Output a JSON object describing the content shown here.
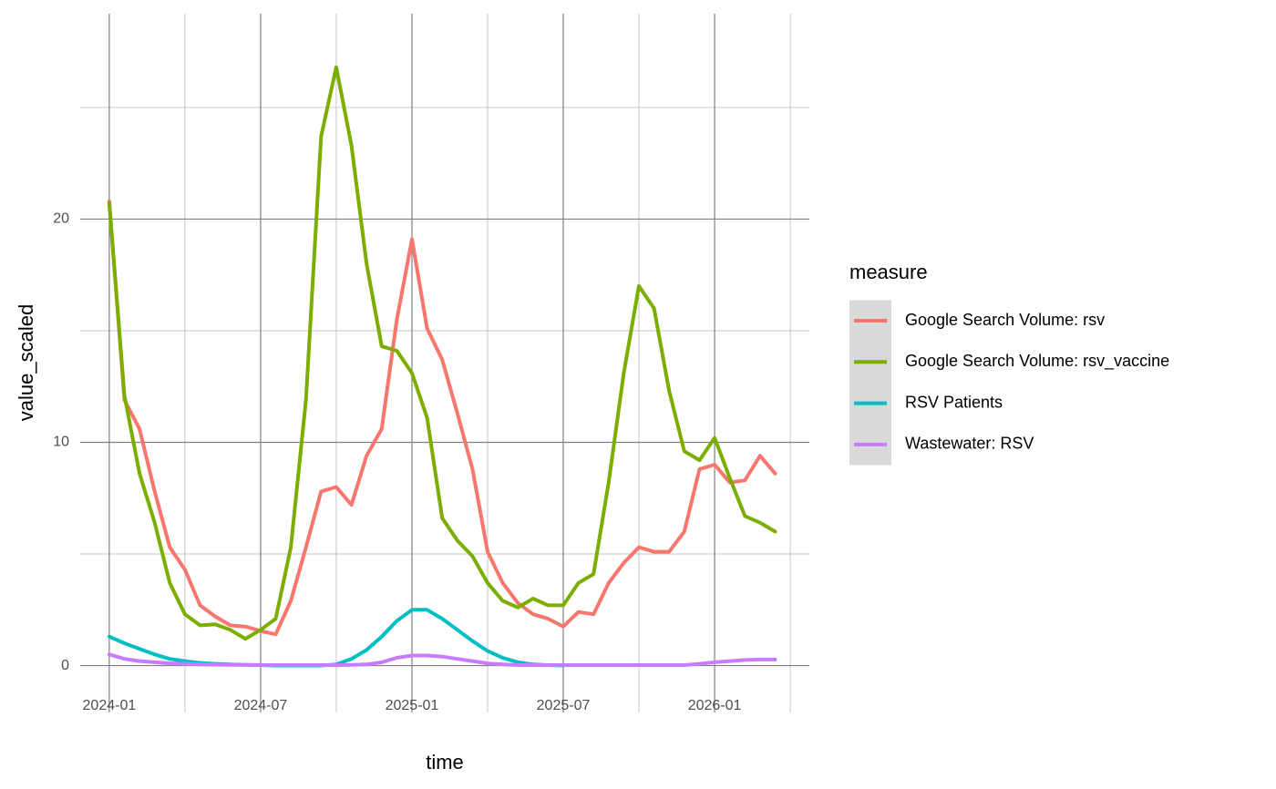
{
  "chart_data": {
    "type": "line",
    "x_label": "time",
    "y_label": "value_scaled",
    "legend_title": "measure",
    "x": [
      2024.0,
      2024.05,
      2024.1,
      2024.15,
      2024.2,
      2024.25,
      2024.3,
      2024.35,
      2024.4,
      2024.45,
      2024.5,
      2024.55,
      2024.6,
      2024.65,
      2024.7,
      2024.75,
      2024.8,
      2024.85,
      2024.9,
      2024.95,
      2025.0,
      2025.05,
      2025.1,
      2025.15,
      2025.2,
      2025.25,
      2025.3,
      2025.35,
      2025.4,
      2025.45,
      2025.5,
      2025.55,
      2025.6,
      2025.65,
      2025.7,
      2025.75,
      2025.8,
      2025.85,
      2025.9,
      2025.95,
      2026.0,
      2026.05,
      2026.1,
      2026.15,
      2026.2
    ],
    "series": [
      {
        "name": "Google Search Volume: rsv",
        "color": "#F8766D",
        "values": [
          20.8,
          11.9,
          10.6,
          7.8,
          5.3,
          4.3,
          2.7,
          2.2,
          1.8,
          1.75,
          1.55,
          1.4,
          2.9,
          5.3,
          7.8,
          8.0,
          7.2,
          9.4,
          10.6,
          15.5,
          19.1,
          15.1,
          13.7,
          11.3,
          8.8,
          5.1,
          3.7,
          2.8,
          2.3,
          2.1,
          1.75,
          2.4,
          2.3,
          3.7,
          4.6,
          5.3,
          5.1,
          5.1,
          6.0,
          8.8,
          9.0,
          8.2,
          8.3,
          9.4,
          8.6
        ]
      },
      {
        "name": "Google Search Volume: rsv_vaccine",
        "color": "#7CAE00",
        "values": [
          20.7,
          12.1,
          8.6,
          6.4,
          3.7,
          2.3,
          1.8,
          1.85,
          1.6,
          1.2,
          1.6,
          2.1,
          5.3,
          11.9,
          23.7,
          26.8,
          23.3,
          18.0,
          14.3,
          14.1,
          13.1,
          11.1,
          6.6,
          5.6,
          4.9,
          3.7,
          2.9,
          2.6,
          3.0,
          2.7,
          2.7,
          3.7,
          4.1,
          8.2,
          13.1,
          17.0,
          16.0,
          12.3,
          9.6,
          9.2,
          10.2,
          8.4,
          6.7,
          6.4,
          6.0
        ]
      },
      {
        "name": "RSV Patients",
        "color": "#00BFC4",
        "values": [
          1.3,
          1.0,
          0.75,
          0.5,
          0.3,
          0.2,
          0.12,
          0.08,
          0.05,
          0.03,
          0.02,
          0.0,
          0.0,
          0.0,
          0.0,
          0.05,
          0.3,
          0.7,
          1.3,
          2.0,
          2.5,
          2.5,
          2.1,
          1.6,
          1.1,
          0.65,
          0.35,
          0.15,
          0.05,
          0.02,
          0.0,
          null,
          null,
          null,
          null,
          null,
          null,
          null,
          null,
          null,
          null,
          null,
          null,
          null,
          null
        ]
      },
      {
        "name": "Wastewater: RSV",
        "color": "#C77CFF",
        "values": [
          0.5,
          0.3,
          0.2,
          0.15,
          0.1,
          0.08,
          0.05,
          0.04,
          0.03,
          0.03,
          0.02,
          0.02,
          0.02,
          0.02,
          0.02,
          0.02,
          0.03,
          0.05,
          0.15,
          0.35,
          0.45,
          0.45,
          0.4,
          0.3,
          0.2,
          0.1,
          0.05,
          0.02,
          0.02,
          0.02,
          0.02,
          0.02,
          0.02,
          0.02,
          0.02,
          0.02,
          0.02,
          0.02,
          0.02,
          0.08,
          0.15,
          0.2,
          0.25,
          0.27,
          0.27
        ]
      }
    ],
    "xlim": [
      2023.904,
      2026.313
    ],
    "xticks": [
      {
        "value": 2024.0,
        "label": "2024-01"
      },
      {
        "value": 2024.5,
        "label": "2024-07"
      },
      {
        "value": 2025.0,
        "label": "2025-01"
      },
      {
        "value": 2025.5,
        "label": "2025-07"
      },
      {
        "value": 2026.0,
        "label": "2026-01"
      }
    ],
    "ylim": [
      -2.1,
      29.2
    ],
    "yticks": [
      0,
      10,
      20
    ],
    "grid": true
  }
}
